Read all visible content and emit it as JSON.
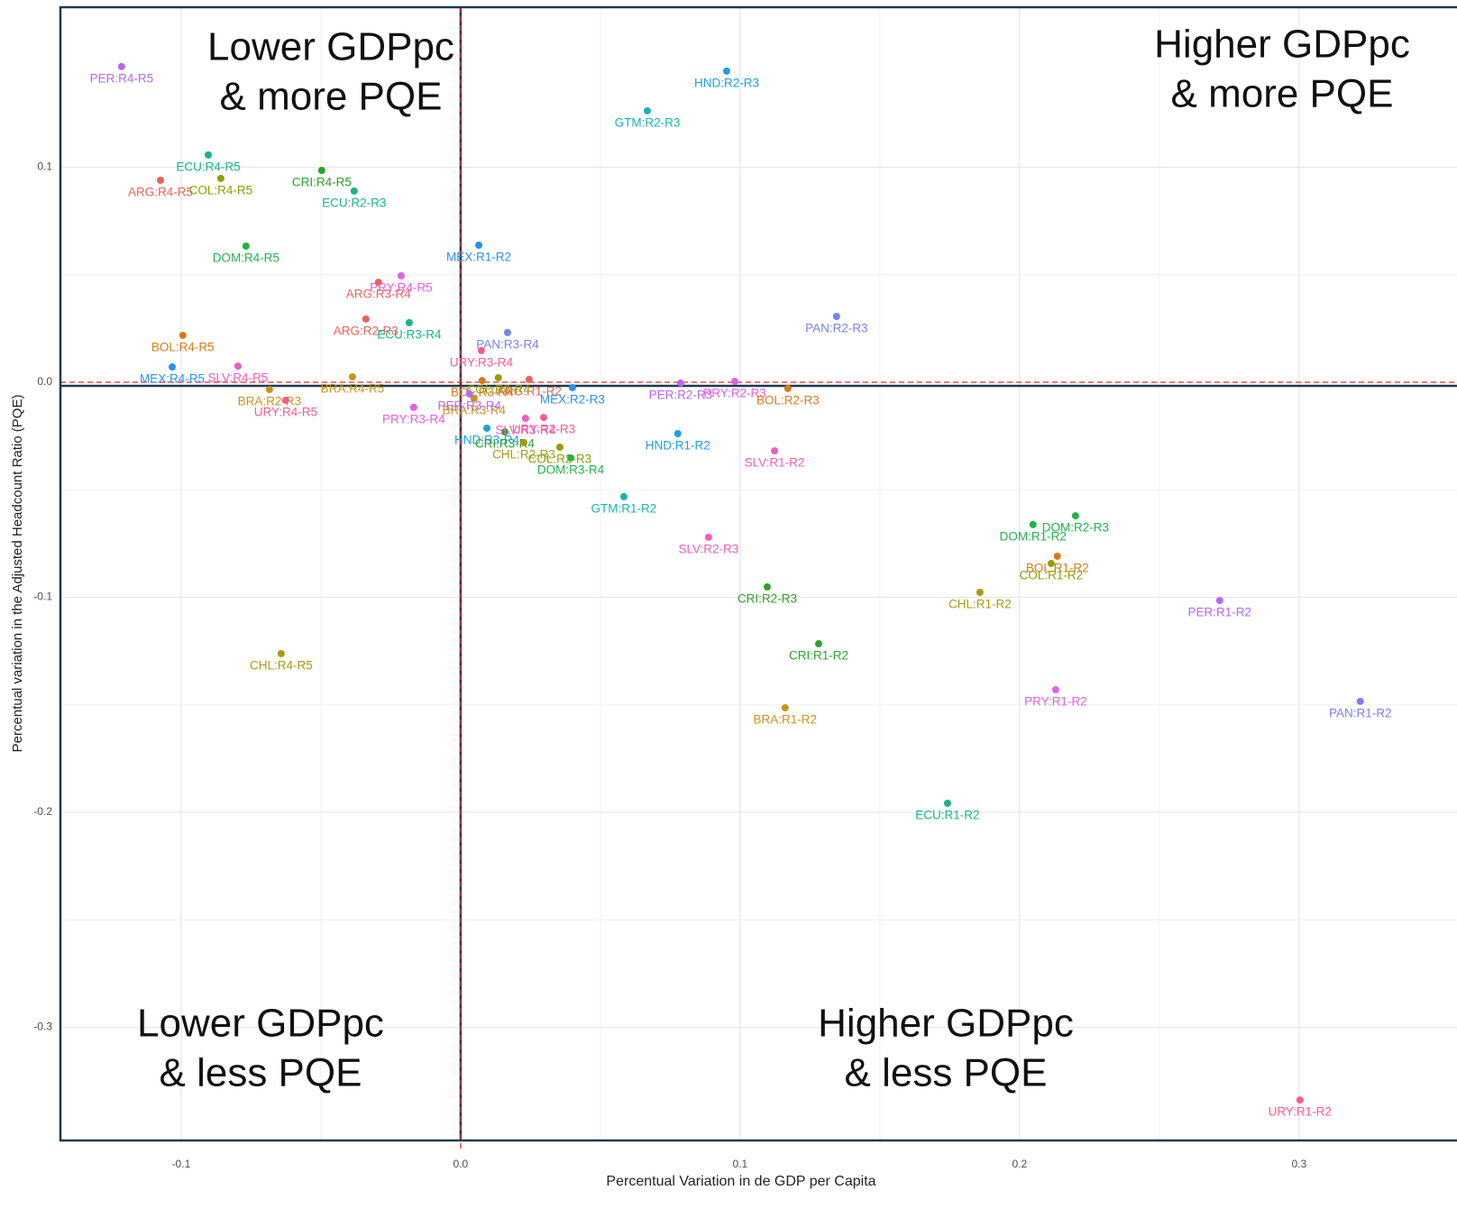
{
  "chart_data": {
    "type": "scatter",
    "x_label": "Percentual Variation in de GDP per Capita",
    "y_label": "Percentual variation in the Adjusted Headcount Ratio (PQE)",
    "xlim": [
      -0.1432,
      0.3565
    ],
    "ylim": [
      -0.3526,
      0.1744
    ],
    "xticks": [
      -0.1,
      {
        "value": 0,
        "label": "0.0"
      },
      0.1,
      0.2,
      0.3
    ],
    "yticks": [
      -0.3,
      -0.2,
      -0.1,
      {
        "value": 0,
        "label": "0.0"
      },
      0.1
    ],
    "grid": true,
    "annotations": [
      {
        "lines": [
          "Lower GDPpc",
          "& more PQE"
        ]
      },
      {
        "lines": [
          "Higher GDPpc",
          "& more PQE"
        ]
      },
      {
        "lines": [
          "Lower GDPpc",
          "& less PQE"
        ]
      },
      {
        "lines": [
          "Higher GDPpc",
          "& less PQE"
        ]
      }
    ],
    "points": [
      {
        "label": "PER:R4-R5",
        "x": -0.1213,
        "y": 0.1468,
        "color": "#b468f5"
      },
      {
        "label": "ARG:R4-R5",
        "x": -0.1074,
        "y": 0.0939,
        "color": "#e8635b"
      },
      {
        "label": "ECU:R4-R5",
        "x": -0.0903,
        "y": 0.1057,
        "color": "#15b58a"
      },
      {
        "label": "COL:R4-R5",
        "x": -0.0858,
        "y": 0.0948,
        "color": "#8fa000"
      },
      {
        "label": "CRI:R4-R5",
        "x": -0.0497,
        "y": 0.0985,
        "color": "#29a329"
      },
      {
        "label": "ECU:R2-R3",
        "x": -0.0381,
        "y": 0.0889,
        "color": "#15b58a"
      },
      {
        "label": "DOM:R4-R5",
        "x": -0.0768,
        "y": 0.0633,
        "color": "#1fb34a"
      },
      {
        "label": "MEX:R1-R2",
        "x": 0.0065,
        "y": 0.0637,
        "color": "#2a90ef"
      },
      {
        "label": "PRY:R4-R5",
        "x": -0.0213,
        "y": 0.0495,
        "color": "#e35ee8"
      },
      {
        "label": "ARG:R3-R4",
        "x": -0.0294,
        "y": 0.0465,
        "color": "#e8635b"
      },
      {
        "label": "ARG:R2-R3",
        "x": -0.0339,
        "y": 0.0294,
        "color": "#e8635b"
      },
      {
        "label": "ECU:R3-R4",
        "x": -0.0184,
        "y": 0.0277,
        "color": "#15b58a"
      },
      {
        "label": "BOL:R4-R5",
        "x": -0.0994,
        "y": 0.0218,
        "color": "#d97a1a"
      },
      {
        "label": "PAN:R3-R4",
        "x": 0.0168,
        "y": 0.0231,
        "color": "#7a7ff0"
      },
      {
        "label": "URY:R3-R4",
        "x": 0.0074,
        "y": 0.0147,
        "color": "#fb5a8f"
      },
      {
        "label": "MEX:R4-R5",
        "x": -0.1032,
        "y": 0.0071,
        "color": "#2a90ef"
      },
      {
        "label": "SLV:R4-R5",
        "x": -0.0797,
        "y": 0.0075,
        "color": "#f25bc0"
      },
      {
        "label": "BRA:R4-R5",
        "x": -0.0387,
        "y": 0.0025,
        "color": "#c89418"
      },
      {
        "label": "BRA:R2-R3",
        "x": -0.0684,
        "y": -0.0034,
        "color": "#c89418"
      },
      {
        "label": "URY:R4-R5",
        "x": -0.0626,
        "y": -0.0084,
        "color": "#fb5a8f"
      },
      {
        "label": "ARG:R1-R2",
        "x": 0.0245,
        "y": 0.0013,
        "color": "#e8635b"
      },
      {
        "label": "BOL:R3-R4",
        "x": 0.0077,
        "y": 0.0008,
        "color": "#d97a1a"
      },
      {
        "label": "COL:R3-R4",
        "x": 0.0135,
        "y": 0.0021,
        "color": "#8fa000"
      },
      {
        "label": "PRY:R3-R4",
        "x": -0.0168,
        "y": -0.0117,
        "color": "#e35ee8"
      },
      {
        "label": "BRA:R3-R4",
        "x": 0.0048,
        "y": -0.0075,
        "color": "#c89418"
      },
      {
        "label": "PER:R3-R4",
        "x": 0.0032,
        "y": -0.0055,
        "color": "#b468f5"
      },
      {
        "label": "HND:R3-R4",
        "x": 0.0094,
        "y": -0.0214,
        "color": "#1aa0e0"
      },
      {
        "label": "CRI:R3-R4",
        "x": 0.0158,
        "y": -0.0231,
        "color": "#29a329"
      },
      {
        "label": "URY:R2-R3",
        "x": 0.0297,
        "y": -0.0164,
        "color": "#fb5a8f"
      },
      {
        "label": "SLV:R3-R4",
        "x": 0.0232,
        "y": -0.0168,
        "color": "#f25bc0"
      },
      {
        "label": "CHL:R2-R3",
        "x": 0.0226,
        "y": -0.0281,
        "color": "#a89a10"
      },
      {
        "label": "COL:R2-R3",
        "x": 0.0355,
        "y": -0.0302,
        "color": "#8fa000"
      },
      {
        "label": "DOM:R3-R4",
        "x": 0.0394,
        "y": -0.0352,
        "color": "#1fb34a"
      },
      {
        "label": "MEX:R2-R3",
        "x": 0.04,
        "y": -0.0025,
        "color": "#2a90ef"
      },
      {
        "label": "PER:R2-R3",
        "x": 0.0787,
        "y": -0.0004,
        "color": "#b468f5"
      },
      {
        "label": "PRY:R2-R3",
        "x": 0.0981,
        "y": 0.0004,
        "color": "#e35ee8"
      },
      {
        "label": "BOL:R2-R3",
        "x": 0.1171,
        "y": -0.0029,
        "color": "#d97a1a"
      },
      {
        "label": "HND:R1-R2",
        "x": 0.0777,
        "y": -0.0239,
        "color": "#1aa0e0"
      },
      {
        "label": "GTM:R1-R2",
        "x": 0.0584,
        "y": -0.0532,
        "color": "#17b3b3"
      },
      {
        "label": "SLV:R1-R2",
        "x": 0.1123,
        "y": -0.0319,
        "color": "#f25bc0"
      },
      {
        "label": "SLV:R2-R3",
        "x": 0.0887,
        "y": -0.0721,
        "color": "#f25bc0"
      },
      {
        "label": "HND:R2-R3",
        "x": 0.0952,
        "y": 0.1447,
        "color": "#1aa0e0"
      },
      {
        "label": "GTM:R2-R3",
        "x": 0.0668,
        "y": 0.1262,
        "color": "#17b3b3"
      },
      {
        "label": "PAN:R2-R3",
        "x": 0.1345,
        "y": 0.0306,
        "color": "#7a7ff0"
      },
      {
        "label": "DOM:R1-R2",
        "x": 0.2048,
        "y": -0.0662,
        "color": "#1fb34a"
      },
      {
        "label": "DOM:R2-R3",
        "x": 0.22,
        "y": -0.0621,
        "color": "#1fb34a"
      },
      {
        "label": "BOL:R1-R2",
        "x": 0.2135,
        "y": -0.0809,
        "color": "#d97a1a"
      },
      {
        "label": "COL:R1-R2",
        "x": 0.2113,
        "y": -0.0843,
        "color": "#8fa000"
      },
      {
        "label": "CHL:R1-R2",
        "x": 0.1858,
        "y": -0.0977,
        "color": "#a89a10"
      },
      {
        "label": "CRI:R2-R3",
        "x": 0.1097,
        "y": -0.0952,
        "color": "#29a329"
      },
      {
        "label": "CRI:R1-R2",
        "x": 0.1281,
        "y": -0.1216,
        "color": "#29a329"
      },
      {
        "label": "BRA:R1-R2",
        "x": 0.1161,
        "y": -0.1514,
        "color": "#c89418"
      },
      {
        "label": "PRY:R1-R2",
        "x": 0.2129,
        "y": -0.143,
        "color": "#e35ee8"
      },
      {
        "label": "PER:R1-R2",
        "x": 0.2716,
        "y": -0.1015,
        "color": "#b468f5"
      },
      {
        "label": "PAN:R1-R2",
        "x": 0.3219,
        "y": -0.1484,
        "color": "#7a7ff0"
      },
      {
        "label": "ECU:R1-R2",
        "x": 0.1742,
        "y": -0.1958,
        "color": "#15b58a"
      },
      {
        "label": "URY:R1-R2",
        "x": 0.3003,
        "y": -0.3338,
        "color": "#fb5a8f"
      },
      {
        "label": "CHL:R4-R5",
        "x": -0.0642,
        "y": -0.1262,
        "color": "#a89a10"
      }
    ]
  }
}
